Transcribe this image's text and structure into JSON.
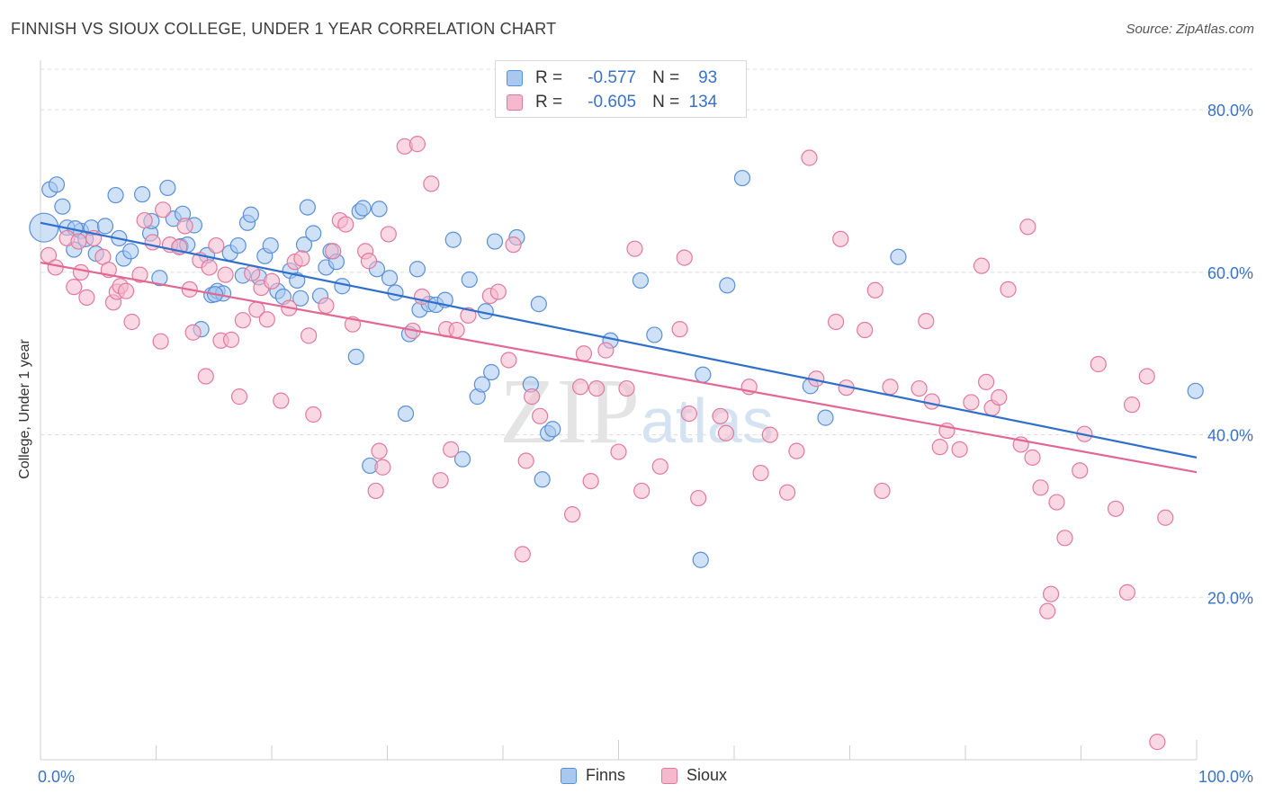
{
  "title": "FINNISH VS SIOUX COLLEGE, UNDER 1 YEAR CORRELATION CHART",
  "source": "Source: ZipAtlas.com",
  "watermark": {
    "zip": "ZIP",
    "atlas": "atlas"
  },
  "legend_top": {
    "rows": [
      {
        "r_label": "R =",
        "r_value": "-0.577",
        "n_label": "N =",
        "n_value": "93",
        "fill": "#a8c8f0",
        "stroke": "#5b8fd6"
      },
      {
        "r_label": "R =",
        "r_value": "-0.605",
        "n_label": "N =",
        "n_value": "134",
        "fill": "#f5b8cc",
        "stroke": "#e07a9c"
      }
    ]
  },
  "legend_bottom": [
    {
      "label": "Finns",
      "fill": "#a8c8f0",
      "stroke": "#5b8fd6"
    },
    {
      "label": "Sioux",
      "fill": "#f5b8cc",
      "stroke": "#e07a9c"
    }
  ],
  "chart_data": {
    "type": "scatter",
    "title": "FINNISH VS SIOUX COLLEGE, UNDER 1 YEAR CORRELATION CHART",
    "xlabel": "",
    "ylabel": "College, Under 1 year",
    "xlim": [
      0,
      100
    ],
    "ylim": [
      0,
      85
    ],
    "x_tick_labels": [
      "0.0%",
      "100.0%"
    ],
    "y_ticks": [
      20,
      40,
      60,
      80
    ],
    "y_tick_labels": [
      "20.0%",
      "40.0%",
      "60.0%",
      "80.0%"
    ],
    "grid": true,
    "legend_position": "top-center",
    "series": [
      {
        "name": "Finns",
        "color": "#5b8fd6",
        "fill": "#a8c8f0",
        "r": -0.577,
        "n": 93,
        "trend": {
          "x": [
            0,
            100
          ],
          "y": [
            66.1,
            37.2
          ]
        },
        "points": [
          [
            0.3,
            65.5
          ],
          [
            0.8,
            70.2
          ],
          [
            1.4,
            70.8
          ],
          [
            1.9,
            68.1
          ],
          [
            2.3,
            65.5
          ],
          [
            2.9,
            62.8
          ],
          [
            3.5,
            65.1
          ],
          [
            3.9,
            64.1
          ],
          [
            4.4,
            65.5
          ],
          [
            4.8,
            62.3
          ],
          [
            5.6,
            65.7
          ],
          [
            6.8,
            64.2
          ],
          [
            7.2,
            61.7
          ],
          [
            7.8,
            62.6
          ],
          [
            6.5,
            69.5
          ],
          [
            8.8,
            69.6
          ],
          [
            9.5,
            64.8
          ],
          [
            9.6,
            66.3
          ],
          [
            10.3,
            59.3
          ],
          [
            11.0,
            70.4
          ],
          [
            11.5,
            66.6
          ],
          [
            12.1,
            63.2
          ],
          [
            12.3,
            67.2
          ],
          [
            12.7,
            63.4
          ],
          [
            13.3,
            65.8
          ],
          [
            13.9,
            53.0
          ],
          [
            14.4,
            62.1
          ],
          [
            14.8,
            57.2
          ],
          [
            15.3,
            57.7
          ],
          [
            15.8,
            57.4
          ],
          [
            16.4,
            62.4
          ],
          [
            17.1,
            63.3
          ],
          [
            17.5,
            59.6
          ],
          [
            17.9,
            66.1
          ],
          [
            18.2,
            67.1
          ],
          [
            18.9,
            59.4
          ],
          [
            19.4,
            62.0
          ],
          [
            19.9,
            63.3
          ],
          [
            20.5,
            57.7
          ],
          [
            21.0,
            57.0
          ],
          [
            21.6,
            60.2
          ],
          [
            22.2,
            59.0
          ],
          [
            22.8,
            63.4
          ],
          [
            23.1,
            68.0
          ],
          [
            23.6,
            64.8
          ],
          [
            24.2,
            57.1
          ],
          [
            24.7,
            60.6
          ],
          [
            25.1,
            62.6
          ],
          [
            25.6,
            61.3
          ],
          [
            26.1,
            58.3
          ],
          [
            27.3,
            49.6
          ],
          [
            27.6,
            67.5
          ],
          [
            27.9,
            67.9
          ],
          [
            28.5,
            36.2
          ],
          [
            29.1,
            60.4
          ],
          [
            29.3,
            67.8
          ],
          [
            30.2,
            59.3
          ],
          [
            30.7,
            57.5
          ],
          [
            31.6,
            42.6
          ],
          [
            31.9,
            52.4
          ],
          [
            32.6,
            60.4
          ],
          [
            32.8,
            55.4
          ],
          [
            33.6,
            56.1
          ],
          [
            34.2,
            56.0
          ],
          [
            35.0,
            56.6
          ],
          [
            35.7,
            64.0
          ],
          [
            36.5,
            37.0
          ],
          [
            37.1,
            59.1
          ],
          [
            37.8,
            44.7
          ],
          [
            38.2,
            46.2
          ],
          [
            38.5,
            55.2
          ],
          [
            39.0,
            47.7
          ],
          [
            39.3,
            63.8
          ],
          [
            41.2,
            64.3
          ],
          [
            42.4,
            46.2
          ],
          [
            43.1,
            56.1
          ],
          [
            43.4,
            34.5
          ],
          [
            43.9,
            40.2
          ],
          [
            44.3,
            40.7
          ],
          [
            49.3,
            51.6
          ],
          [
            51.9,
            59.0
          ],
          [
            53.1,
            52.3
          ],
          [
            57.1,
            24.6
          ],
          [
            57.3,
            47.4
          ],
          [
            59.4,
            58.4
          ],
          [
            60.7,
            71.6
          ],
          [
            66.6,
            46.0
          ],
          [
            67.9,
            42.1
          ],
          [
            74.2,
            61.9
          ],
          [
            99.9,
            45.4
          ],
          [
            3.0,
            65.4
          ],
          [
            15.1,
            57.3
          ],
          [
            22.5,
            56.8
          ]
        ]
      },
      {
        "name": "Sioux",
        "color": "#e07a9c",
        "fill": "#f5b8cc",
        "r": -0.605,
        "n": 134,
        "trend": {
          "x": [
            0,
            100
          ],
          "y": [
            61.2,
            35.4
          ]
        },
        "points": [
          [
            0.7,
            62.1
          ],
          [
            1.3,
            60.6
          ],
          [
            2.3,
            64.2
          ],
          [
            2.9,
            58.2
          ],
          [
            3.3,
            63.8
          ],
          [
            3.5,
            60.0
          ],
          [
            4.0,
            56.9
          ],
          [
            4.6,
            64.2
          ],
          [
            5.4,
            61.9
          ],
          [
            5.9,
            60.3
          ],
          [
            6.3,
            56.3
          ],
          [
            6.6,
            57.6
          ],
          [
            6.9,
            58.3
          ],
          [
            7.4,
            57.7
          ],
          [
            7.9,
            53.9
          ],
          [
            8.6,
            59.7
          ],
          [
            9.0,
            66.4
          ],
          [
            9.7,
            63.7
          ],
          [
            10.4,
            51.5
          ],
          [
            10.6,
            67.7
          ],
          [
            11.2,
            63.4
          ],
          [
            12.0,
            63.1
          ],
          [
            12.5,
            65.7
          ],
          [
            12.9,
            57.9
          ],
          [
            13.2,
            52.6
          ],
          [
            13.8,
            61.5
          ],
          [
            14.3,
            47.2
          ],
          [
            14.6,
            60.6
          ],
          [
            15.2,
            63.3
          ],
          [
            15.6,
            51.6
          ],
          [
            16.0,
            59.7
          ],
          [
            16.5,
            51.7
          ],
          [
            17.2,
            44.7
          ],
          [
            17.5,
            54.1
          ],
          [
            18.3,
            59.9
          ],
          [
            18.7,
            55.4
          ],
          [
            19.1,
            58.1
          ],
          [
            19.6,
            54.2
          ],
          [
            20.0,
            58.9
          ],
          [
            20.8,
            44.2
          ],
          [
            21.5,
            55.6
          ],
          [
            22.0,
            61.3
          ],
          [
            22.6,
            61.7
          ],
          [
            23.2,
            52.2
          ],
          [
            23.6,
            42.5
          ],
          [
            24.7,
            55.9
          ],
          [
            25.3,
            62.6
          ],
          [
            25.9,
            66.4
          ],
          [
            26.4,
            65.9
          ],
          [
            27.0,
            53.6
          ],
          [
            28.1,
            62.6
          ],
          [
            28.4,
            61.4
          ],
          [
            29.0,
            33.1
          ],
          [
            29.3,
            38.0
          ],
          [
            29.6,
            36.0
          ],
          [
            30.1,
            64.7
          ],
          [
            31.5,
            75.5
          ],
          [
            32.2,
            52.8
          ],
          [
            32.6,
            75.8
          ],
          [
            33.0,
            57.0
          ],
          [
            33.8,
            70.9
          ],
          [
            34.6,
            34.4
          ],
          [
            35.1,
            53.0
          ],
          [
            35.5,
            38.2
          ],
          [
            36.0,
            52.9
          ],
          [
            37.0,
            54.7
          ],
          [
            38.9,
            57.1
          ],
          [
            39.6,
            57.6
          ],
          [
            40.5,
            49.2
          ],
          [
            40.9,
            63.4
          ],
          [
            41.7,
            25.3
          ],
          [
            42.0,
            36.8
          ],
          [
            42.5,
            44.7
          ],
          [
            43.2,
            42.3
          ],
          [
            46.0,
            30.2
          ],
          [
            46.7,
            45.9
          ],
          [
            47.0,
            50.0
          ],
          [
            47.6,
            34.3
          ],
          [
            48.1,
            45.7
          ],
          [
            48.9,
            50.4
          ],
          [
            50.0,
            37.9
          ],
          [
            50.7,
            45.7
          ],
          [
            51.4,
            62.9
          ],
          [
            52.0,
            33.1
          ],
          [
            53.6,
            36.1
          ],
          [
            55.3,
            53.0
          ],
          [
            55.7,
            61.8
          ],
          [
            56.1,
            42.6
          ],
          [
            56.9,
            32.2
          ],
          [
            58.8,
            42.3
          ],
          [
            59.3,
            40.2
          ],
          [
            61.3,
            45.9
          ],
          [
            62.3,
            35.3
          ],
          [
            63.1,
            40.0
          ],
          [
            64.6,
            32.9
          ],
          [
            65.4,
            38.0
          ],
          [
            66.5,
            74.1
          ],
          [
            67.1,
            46.9
          ],
          [
            68.8,
            53.9
          ],
          [
            69.2,
            64.1
          ],
          [
            69.7,
            45.8
          ],
          [
            71.3,
            52.9
          ],
          [
            72.2,
            57.8
          ],
          [
            72.8,
            33.1
          ],
          [
            73.5,
            45.9
          ],
          [
            76.0,
            45.7
          ],
          [
            76.6,
            54.0
          ],
          [
            77.1,
            44.1
          ],
          [
            78.4,
            40.5
          ],
          [
            77.8,
            38.5
          ],
          [
            79.5,
            38.2
          ],
          [
            80.5,
            44.0
          ],
          [
            81.4,
            60.8
          ],
          [
            81.8,
            46.5
          ],
          [
            82.3,
            43.3
          ],
          [
            82.9,
            44.6
          ],
          [
            83.7,
            57.9
          ],
          [
            84.8,
            38.8
          ],
          [
            85.4,
            65.6
          ],
          [
            85.8,
            37.2
          ],
          [
            86.5,
            33.5
          ],
          [
            87.1,
            18.3
          ],
          [
            87.4,
            20.4
          ],
          [
            87.9,
            31.7
          ],
          [
            88.6,
            27.3
          ],
          [
            89.9,
            35.6
          ],
          [
            90.3,
            40.1
          ],
          [
            91.5,
            48.7
          ],
          [
            93.0,
            30.9
          ],
          [
            94.0,
            20.6
          ],
          [
            94.4,
            43.7
          ],
          [
            95.7,
            47.2
          ],
          [
            96.6,
            2.2
          ],
          [
            97.3,
            29.8
          ]
        ]
      }
    ]
  }
}
